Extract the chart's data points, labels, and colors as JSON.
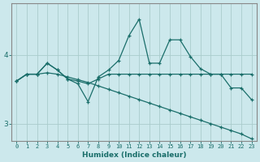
{
  "xlabel": "Humidex (Indice chaleur)",
  "ylabel": "",
  "background_color": "#cce8ec",
  "grid_color": "#aacccc",
  "line_color": "#1a6e6a",
  "x_values": [
    0,
    1,
    2,
    3,
    4,
    5,
    6,
    7,
    8,
    9,
    10,
    11,
    12,
    13,
    14,
    15,
    16,
    17,
    18,
    19,
    20,
    21,
    22,
    23
  ],
  "series1": [
    3.62,
    3.72,
    3.72,
    3.88,
    3.78,
    3.65,
    3.58,
    3.32,
    3.68,
    3.78,
    3.92,
    4.28,
    4.52,
    3.88,
    3.88,
    4.22,
    4.22,
    3.98,
    3.8,
    3.72,
    3.72,
    3.52,
    3.52,
    3.35
  ],
  "series2": [
    3.62,
    3.72,
    3.72,
    3.88,
    3.78,
    3.65,
    3.62,
    3.58,
    3.65,
    3.72,
    3.72,
    3.72,
    3.72,
    3.72,
    3.72,
    3.72,
    3.72,
    3.72,
    3.72,
    3.72,
    3.72,
    3.72,
    3.72,
    3.72
  ],
  "series3": [
    3.62,
    3.72,
    3.72,
    3.74,
    3.72,
    3.68,
    3.64,
    3.6,
    3.55,
    3.5,
    3.45,
    3.4,
    3.35,
    3.3,
    3.25,
    3.2,
    3.15,
    3.1,
    3.05,
    3.0,
    2.95,
    2.9,
    2.85,
    2.78
  ],
  "ylim": [
    2.75,
    4.75
  ],
  "yticks": [
    3,
    4
  ],
  "xlim": [
    -0.5,
    23.5
  ]
}
